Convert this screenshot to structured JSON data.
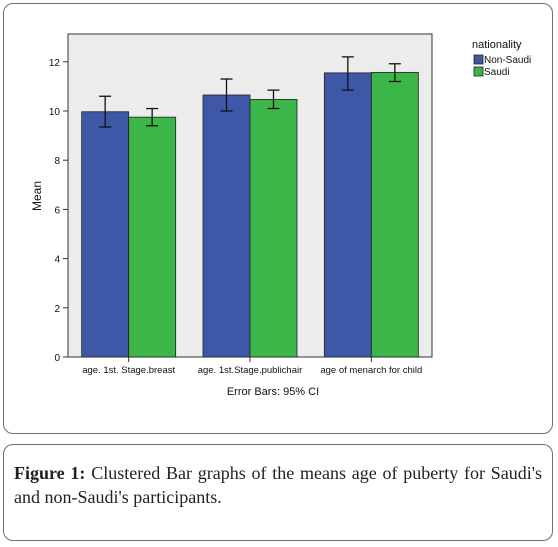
{
  "chart_data": {
    "type": "bar",
    "categories": [
      "age. 1st. Stage.breast",
      "age. 1st.Stage.publichair",
      "age of menarch for child"
    ],
    "series": [
      {
        "name": "Non-Saudi",
        "values": [
          9.97,
          10.65,
          11.55
        ],
        "ci_low": [
          9.35,
          10.0,
          10.85
        ],
        "ci_high": [
          10.6,
          11.3,
          12.2
        ],
        "color": "#3f57a7"
      },
      {
        "name": "Saudi",
        "values": [
          9.75,
          10.47,
          11.57
        ],
        "ci_low": [
          9.4,
          10.1,
          11.2
        ],
        "ci_high": [
          10.1,
          10.85,
          11.92
        ],
        "color": "#3cb549"
      }
    ],
    "ylabel": "Mean",
    "xlabel": "Error Bars: 95% CI",
    "ylim": [
      0,
      13
    ],
    "yticks": [
      0,
      2,
      4,
      6,
      8,
      10,
      12
    ],
    "legend": {
      "title": "nationality",
      "position": "top-right"
    },
    "plot_background": "#ececec",
    "grid": false
  },
  "caption": {
    "label": "Figure 1:",
    "text": "Clustered Bar graphs of the means age of puberty for Saudi's and non-Saudi's participants."
  }
}
